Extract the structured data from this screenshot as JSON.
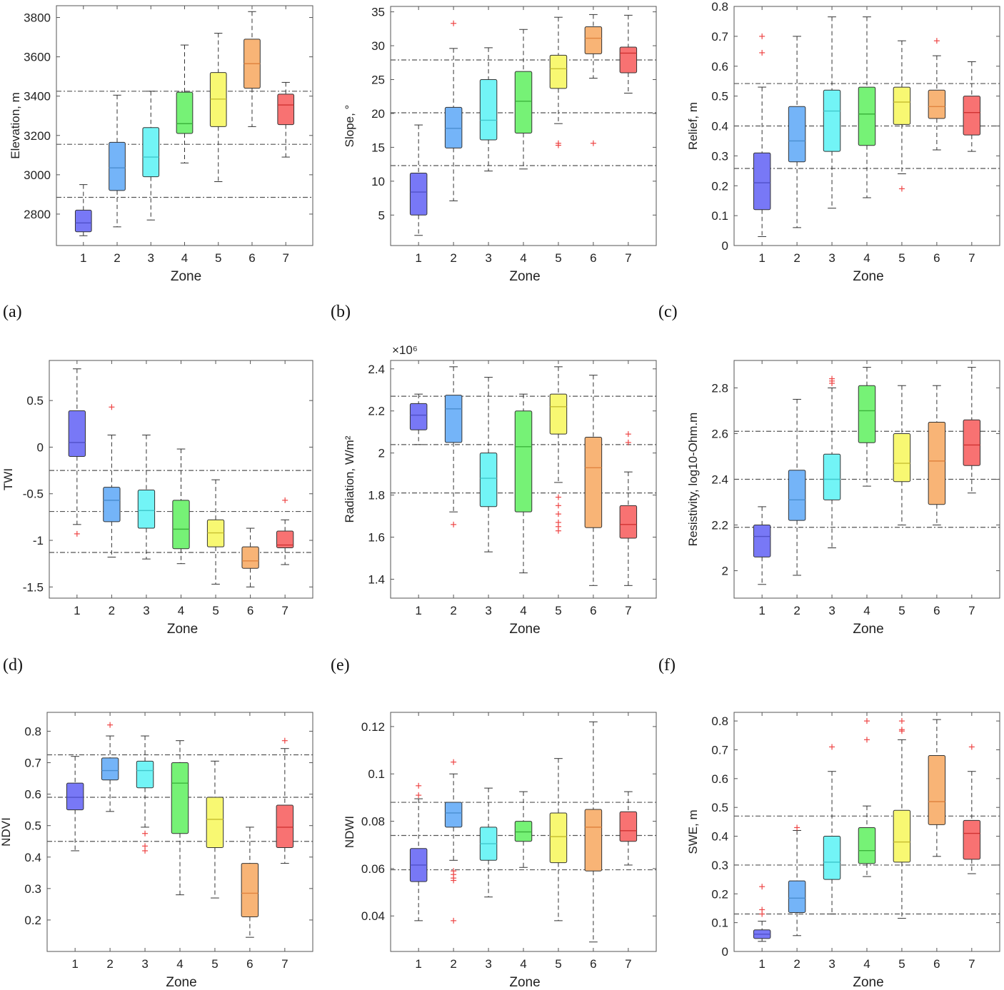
{
  "colors": {
    "zones": [
      "#7878f6",
      "#74b4f8",
      "#72f4f6",
      "#76f276",
      "#f8f872",
      "#f8b476",
      "#f87272"
    ],
    "median": [
      "#5050c8",
      "#4a8ed0",
      "#40c8cc",
      "#3cb43c",
      "#c8c032",
      "#e08440",
      "#d03232"
    ],
    "outlier": "#ee4444",
    "refline": "#555555"
  },
  "chart_data": [
    {
      "id": "a",
      "panel_label": "(a)",
      "type": "box",
      "xlabel": "Zone",
      "ylabel": "Elevation, m",
      "ylim": [
        2640,
        3860
      ],
      "yticks": [
        2800,
        3000,
        3200,
        3400,
        3600,
        3800
      ],
      "categories": [
        "1",
        "2",
        "3",
        "4",
        "5",
        "6",
        "7"
      ],
      "ref_lines": [
        2885,
        3155,
        3425
      ],
      "boxes": [
        {
          "wlow": 2690,
          "q1": 2710,
          "median": 2755,
          "q3": 2820,
          "whigh": 2950,
          "outliers": []
        },
        {
          "wlow": 2735,
          "q1": 2920,
          "median": 3035,
          "q3": 3165,
          "whigh": 3405,
          "outliers": []
        },
        {
          "wlow": 2770,
          "q1": 2990,
          "median": 3090,
          "q3": 3240,
          "whigh": 3425,
          "outliers": []
        },
        {
          "wlow": 3060,
          "q1": 3210,
          "median": 3260,
          "q3": 3420,
          "whigh": 3660,
          "outliers": []
        },
        {
          "wlow": 2965,
          "q1": 3245,
          "median": 3385,
          "q3": 3520,
          "whigh": 3720,
          "outliers": []
        },
        {
          "wlow": 3245,
          "q1": 3440,
          "median": 3565,
          "q3": 3690,
          "whigh": 3830,
          "outliers": []
        },
        {
          "wlow": 3090,
          "q1": 3255,
          "median": 3355,
          "q3": 3410,
          "whigh": 3470,
          "outliers": []
        }
      ]
    },
    {
      "id": "b",
      "panel_label": "(b)",
      "type": "box",
      "xlabel": "Zone",
      "ylabel": "Slope, °",
      "ylim": [
        0.5,
        35.8
      ],
      "yticks": [
        5,
        10,
        15,
        20,
        25,
        30,
        35
      ],
      "categories": [
        "1",
        "2",
        "3",
        "4",
        "5",
        "6",
        "7"
      ],
      "ref_lines": [
        12.3,
        20.1,
        27.9
      ],
      "boxes": [
        {
          "wlow": 2,
          "q1": 5,
          "median": 8.4,
          "q3": 11.2,
          "whigh": 18.3,
          "outliers": []
        },
        {
          "wlow": 7.1,
          "q1": 14.9,
          "median": 17.8,
          "q3": 20.9,
          "whigh": 29.6,
          "outliers": [
            33.3
          ]
        },
        {
          "wlow": 11.5,
          "q1": 16.1,
          "median": 19,
          "q3": 25,
          "whigh": 29.7,
          "outliers": []
        },
        {
          "wlow": 11.8,
          "q1": 17.1,
          "median": 21.8,
          "q3": 26.2,
          "whigh": 32.4,
          "outliers": []
        },
        {
          "wlow": 18.5,
          "q1": 23.7,
          "median": 26.6,
          "q3": 28.6,
          "whigh": 34.2,
          "outliers": [
            15.3,
            15.6
          ]
        },
        {
          "wlow": 25.2,
          "q1": 28.8,
          "median": 31.1,
          "q3": 32.8,
          "whigh": 34.6,
          "outliers": [
            15.6
          ]
        },
        {
          "wlow": 23,
          "q1": 26,
          "median": 28.9,
          "q3": 29.8,
          "whigh": 34.5,
          "outliers": []
        }
      ]
    },
    {
      "id": "c",
      "panel_label": "(c)",
      "type": "box",
      "xlabel": "Zone",
      "ylabel": "Relief, m",
      "ylim": [
        0,
        0.8
      ],
      "yticks": [
        0,
        0.1,
        0.2,
        0.3,
        0.4,
        0.5,
        0.6,
        0.7,
        0.8
      ],
      "categories": [
        "1",
        "2",
        "3",
        "4",
        "5",
        "6",
        "7"
      ],
      "ref_lines": [
        0.258,
        0.4,
        0.542
      ],
      "boxes": [
        {
          "wlow": 0.03,
          "q1": 0.12,
          "median": 0.21,
          "q3": 0.31,
          "whigh": 0.53,
          "outliers": [
            0.645,
            0.7
          ]
        },
        {
          "wlow": 0.06,
          "q1": 0.28,
          "median": 0.35,
          "q3": 0.465,
          "whigh": 0.7,
          "outliers": []
        },
        {
          "wlow": 0.125,
          "q1": 0.315,
          "median": 0.45,
          "q3": 0.52,
          "whigh": 0.765,
          "outliers": []
        },
        {
          "wlow": 0.16,
          "q1": 0.335,
          "median": 0.44,
          "q3": 0.53,
          "whigh": 0.765,
          "outliers": []
        },
        {
          "wlow": 0.24,
          "q1": 0.405,
          "median": 0.48,
          "q3": 0.53,
          "whigh": 0.685,
          "outliers": [
            0.19
          ]
        },
        {
          "wlow": 0.32,
          "q1": 0.425,
          "median": 0.465,
          "q3": 0.52,
          "whigh": 0.635,
          "outliers": [
            0.685
          ]
        },
        {
          "wlow": 0.315,
          "q1": 0.37,
          "median": 0.445,
          "q3": 0.5,
          "whigh": 0.615,
          "outliers": []
        }
      ]
    },
    {
      "id": "d",
      "panel_label": "(d)",
      "type": "box",
      "xlabel": "Zone",
      "ylabel": "TWI",
      "ylim": [
        -1.62,
        0.93
      ],
      "yticks": [
        -1.5,
        -1,
        -0.5,
        0,
        0.5
      ],
      "ytick_labels": [
        "-1.5",
        "-1",
        "-0.5",
        "0",
        "0.5"
      ],
      "categories": [
        "1",
        "2",
        "3",
        "4",
        "5",
        "6",
        "7"
      ],
      "ref_lines": [
        -0.25,
        -0.69,
        -1.13
      ],
      "boxes": [
        {
          "wlow": -0.83,
          "q1": -0.1,
          "median": 0.05,
          "q3": 0.39,
          "whigh": 0.84,
          "outliers": [
            -0.93
          ]
        },
        {
          "wlow": -1.18,
          "q1": -0.8,
          "median": -0.57,
          "q3": -0.43,
          "whigh": 0.13,
          "outliers": [
            0.43
          ]
        },
        {
          "wlow": -1.2,
          "q1": -0.87,
          "median": -0.68,
          "q3": -0.46,
          "whigh": 0.13,
          "outliers": []
        },
        {
          "wlow": -1.25,
          "q1": -1.09,
          "median": -0.88,
          "q3": -0.57,
          "whigh": -0.02,
          "outliers": []
        },
        {
          "wlow": -1.47,
          "q1": -1.07,
          "median": -0.92,
          "q3": -0.78,
          "whigh": -0.35,
          "outliers": []
        },
        {
          "wlow": -1.5,
          "q1": -1.3,
          "median": -1.22,
          "q3": -1.07,
          "whigh": -0.87,
          "outliers": []
        },
        {
          "wlow": -1.26,
          "q1": -1.08,
          "median": -1.05,
          "q3": -0.9,
          "whigh": -0.78,
          "outliers": [
            -0.57
          ]
        }
      ]
    },
    {
      "id": "e",
      "panel_label": "(e)",
      "type": "box",
      "xlabel": "Zone",
      "ylabel": "Radiation, W/m²",
      "exponent_label": "×10⁶",
      "ylim": [
        1.31,
        2.44
      ],
      "yticks": [
        1.4,
        1.6,
        1.8,
        2,
        2.2,
        2.4
      ],
      "categories": [
        "1",
        "2",
        "3",
        "4",
        "5",
        "6",
        "7"
      ],
      "ref_lines": [
        1.81,
        2.04,
        2.27
      ],
      "boxes": [
        {
          "wlow": 2.04,
          "q1": 2.11,
          "median": 2.18,
          "q3": 2.235,
          "whigh": 2.28,
          "outliers": []
        },
        {
          "wlow": 1.72,
          "q1": 2.05,
          "median": 2.21,
          "q3": 2.275,
          "whigh": 2.41,
          "outliers": [
            1.66
          ]
        },
        {
          "wlow": 1.53,
          "q1": 1.745,
          "median": 1.88,
          "q3": 2.0,
          "whigh": 2.36,
          "outliers": []
        },
        {
          "wlow": 1.43,
          "q1": 1.72,
          "median": 2.03,
          "q3": 2.2,
          "whigh": 2.28,
          "outliers": []
        },
        {
          "wlow": 1.86,
          "q1": 2.09,
          "median": 2.22,
          "q3": 2.28,
          "whigh": 2.41,
          "outliers": [
            1.63,
            1.65,
            1.67,
            1.71,
            1.75,
            1.79
          ]
        },
        {
          "wlow": 1.37,
          "q1": 1.645,
          "median": 1.93,
          "q3": 2.075,
          "whigh": 2.37,
          "outliers": []
        },
        {
          "wlow": 1.37,
          "q1": 1.595,
          "median": 1.66,
          "q3": 1.75,
          "whigh": 1.91,
          "outliers": [
            2.05,
            2.09
          ]
        }
      ]
    },
    {
      "id": "f",
      "panel_label": "(f)",
      "type": "box",
      "xlabel": "Zone",
      "ylabel": "Resistivity, log10-Ohm.m",
      "ylim": [
        1.88,
        2.92
      ],
      "yticks": [
        2,
        2.2,
        2.4,
        2.6,
        2.8
      ],
      "categories": [
        "1",
        "2",
        "3",
        "4",
        "5",
        "6",
        "7"
      ],
      "ref_lines": [
        2.19,
        2.4,
        2.61
      ],
      "boxes": [
        {
          "wlow": 1.94,
          "q1": 2.06,
          "median": 2.15,
          "q3": 2.2,
          "whigh": 2.28,
          "outliers": []
        },
        {
          "wlow": 1.98,
          "q1": 2.22,
          "median": 2.31,
          "q3": 2.44,
          "whigh": 2.75,
          "outliers": []
        },
        {
          "wlow": 2.1,
          "q1": 2.31,
          "median": 2.4,
          "q3": 2.51,
          "whigh": 2.8,
          "outliers": [
            2.82,
            2.83,
            2.84
          ]
        },
        {
          "wlow": 2.37,
          "q1": 2.56,
          "median": 2.7,
          "q3": 2.81,
          "whigh": 2.89,
          "outliers": []
        },
        {
          "wlow": 2.2,
          "q1": 2.39,
          "median": 2.47,
          "q3": 2.6,
          "whigh": 2.81,
          "outliers": []
        },
        {
          "wlow": 2.2,
          "q1": 2.29,
          "median": 2.48,
          "q3": 2.65,
          "whigh": 2.81,
          "outliers": []
        },
        {
          "wlow": 2.34,
          "q1": 2.46,
          "median": 2.55,
          "q3": 2.66,
          "whigh": 2.89,
          "outliers": []
        }
      ]
    },
    {
      "id": "g",
      "panel_label": "",
      "type": "box",
      "xlabel": "Zone",
      "ylabel": "NDVI",
      "ylim": [
        0.1,
        0.86
      ],
      "yticks": [
        0.2,
        0.3,
        0.4,
        0.5,
        0.6,
        0.7,
        0.8
      ],
      "categories": [
        "1",
        "2",
        "3",
        "4",
        "5",
        "6",
        "7"
      ],
      "ref_lines": [
        0.45,
        0.59,
        0.725
      ],
      "boxes": [
        {
          "wlow": 0.42,
          "q1": 0.55,
          "median": 0.59,
          "q3": 0.635,
          "whigh": 0.72,
          "outliers": []
        },
        {
          "wlow": 0.545,
          "q1": 0.645,
          "median": 0.675,
          "q3": 0.715,
          "whigh": 0.785,
          "outliers": [
            0.82
          ]
        },
        {
          "wlow": 0.495,
          "q1": 0.62,
          "median": 0.675,
          "q3": 0.705,
          "whigh": 0.785,
          "outliers": [
            0.42,
            0.435,
            0.475
          ]
        },
        {
          "wlow": 0.28,
          "q1": 0.475,
          "median": 0.635,
          "q3": 0.7,
          "whigh": 0.77,
          "outliers": []
        },
        {
          "wlow": 0.27,
          "q1": 0.43,
          "median": 0.52,
          "q3": 0.59,
          "whigh": 0.705,
          "outliers": []
        },
        {
          "wlow": 0.145,
          "q1": 0.21,
          "median": 0.285,
          "q3": 0.38,
          "whigh": 0.495,
          "outliers": []
        },
        {
          "wlow": 0.38,
          "q1": 0.43,
          "median": 0.495,
          "q3": 0.565,
          "whigh": 0.745,
          "outliers": [
            0.77
          ]
        }
      ]
    },
    {
      "id": "h",
      "panel_label": "",
      "type": "box",
      "xlabel": "Zone",
      "ylabel": "NDWI",
      "ylim": [
        0.025,
        0.126
      ],
      "yticks": [
        0.04,
        0.06,
        0.08,
        0.1,
        0.12
      ],
      "categories": [
        "1",
        "2",
        "3",
        "4",
        "5",
        "6",
        "7"
      ],
      "ref_lines": [
        0.0595,
        0.074,
        0.088
      ],
      "boxes": [
        {
          "wlow": 0.038,
          "q1": 0.0545,
          "median": 0.0615,
          "q3": 0.0685,
          "whigh": 0.0895,
          "outliers": [
            0.091,
            0.095
          ]
        },
        {
          "wlow": 0.0635,
          "q1": 0.0775,
          "median": 0.0835,
          "q3": 0.088,
          "whigh": 0.1,
          "outliers": [
            0.038,
            0.055,
            0.056,
            0.0575,
            0.059,
            0.105
          ]
        },
        {
          "wlow": 0.048,
          "q1": 0.0635,
          "median": 0.0705,
          "q3": 0.0775,
          "whigh": 0.094,
          "outliers": []
        },
        {
          "wlow": 0.0605,
          "q1": 0.0715,
          "median": 0.0755,
          "q3": 0.08,
          "whigh": 0.0925,
          "outliers": []
        },
        {
          "wlow": 0.038,
          "q1": 0.0625,
          "median": 0.0735,
          "q3": 0.0835,
          "whigh": 0.1065,
          "outliers": []
        },
        {
          "wlow": 0.029,
          "q1": 0.059,
          "median": 0.0775,
          "q3": 0.085,
          "whigh": 0.122,
          "outliers": []
        },
        {
          "wlow": 0.0615,
          "q1": 0.0715,
          "median": 0.076,
          "q3": 0.084,
          "whigh": 0.0925,
          "outliers": []
        }
      ]
    },
    {
      "id": "i",
      "panel_label": "",
      "type": "box",
      "xlabel": "Zone",
      "ylabel": "SWE, m",
      "ylim": [
        0,
        0.83
      ],
      "yticks": [
        0,
        0.1,
        0.2,
        0.3,
        0.4,
        0.5,
        0.6,
        0.7,
        0.8
      ],
      "categories": [
        "1",
        "2",
        "3",
        "4",
        "5",
        "6",
        "7"
      ],
      "ref_lines": [
        0.13,
        0.3,
        0.47
      ],
      "boxes": [
        {
          "wlow": 0.035,
          "q1": 0.045,
          "median": 0.06,
          "q3": 0.075,
          "whigh": 0.105,
          "outliers": [
            0.13,
            0.145,
            0.225
          ]
        },
        {
          "wlow": 0.055,
          "q1": 0.135,
          "median": 0.185,
          "q3": 0.245,
          "whigh": 0.42,
          "outliers": [
            0.43
          ]
        },
        {
          "wlow": 0.13,
          "q1": 0.25,
          "median": 0.31,
          "q3": 0.4,
          "whigh": 0.625,
          "outliers": [
            0.71
          ]
        },
        {
          "wlow": 0.26,
          "q1": 0.305,
          "median": 0.35,
          "q3": 0.43,
          "whigh": 0.505,
          "outliers": [
            0.735,
            0.8
          ]
        },
        {
          "wlow": 0.115,
          "q1": 0.31,
          "median": 0.38,
          "q3": 0.49,
          "whigh": 0.735,
          "outliers": [
            0.765,
            0.77,
            0.8
          ]
        },
        {
          "wlow": 0.33,
          "q1": 0.44,
          "median": 0.52,
          "q3": 0.68,
          "whigh": 0.805,
          "outliers": []
        },
        {
          "wlow": 0.27,
          "q1": 0.32,
          "median": 0.41,
          "q3": 0.455,
          "whigh": 0.625,
          "outliers": [
            0.71
          ]
        }
      ]
    }
  ]
}
